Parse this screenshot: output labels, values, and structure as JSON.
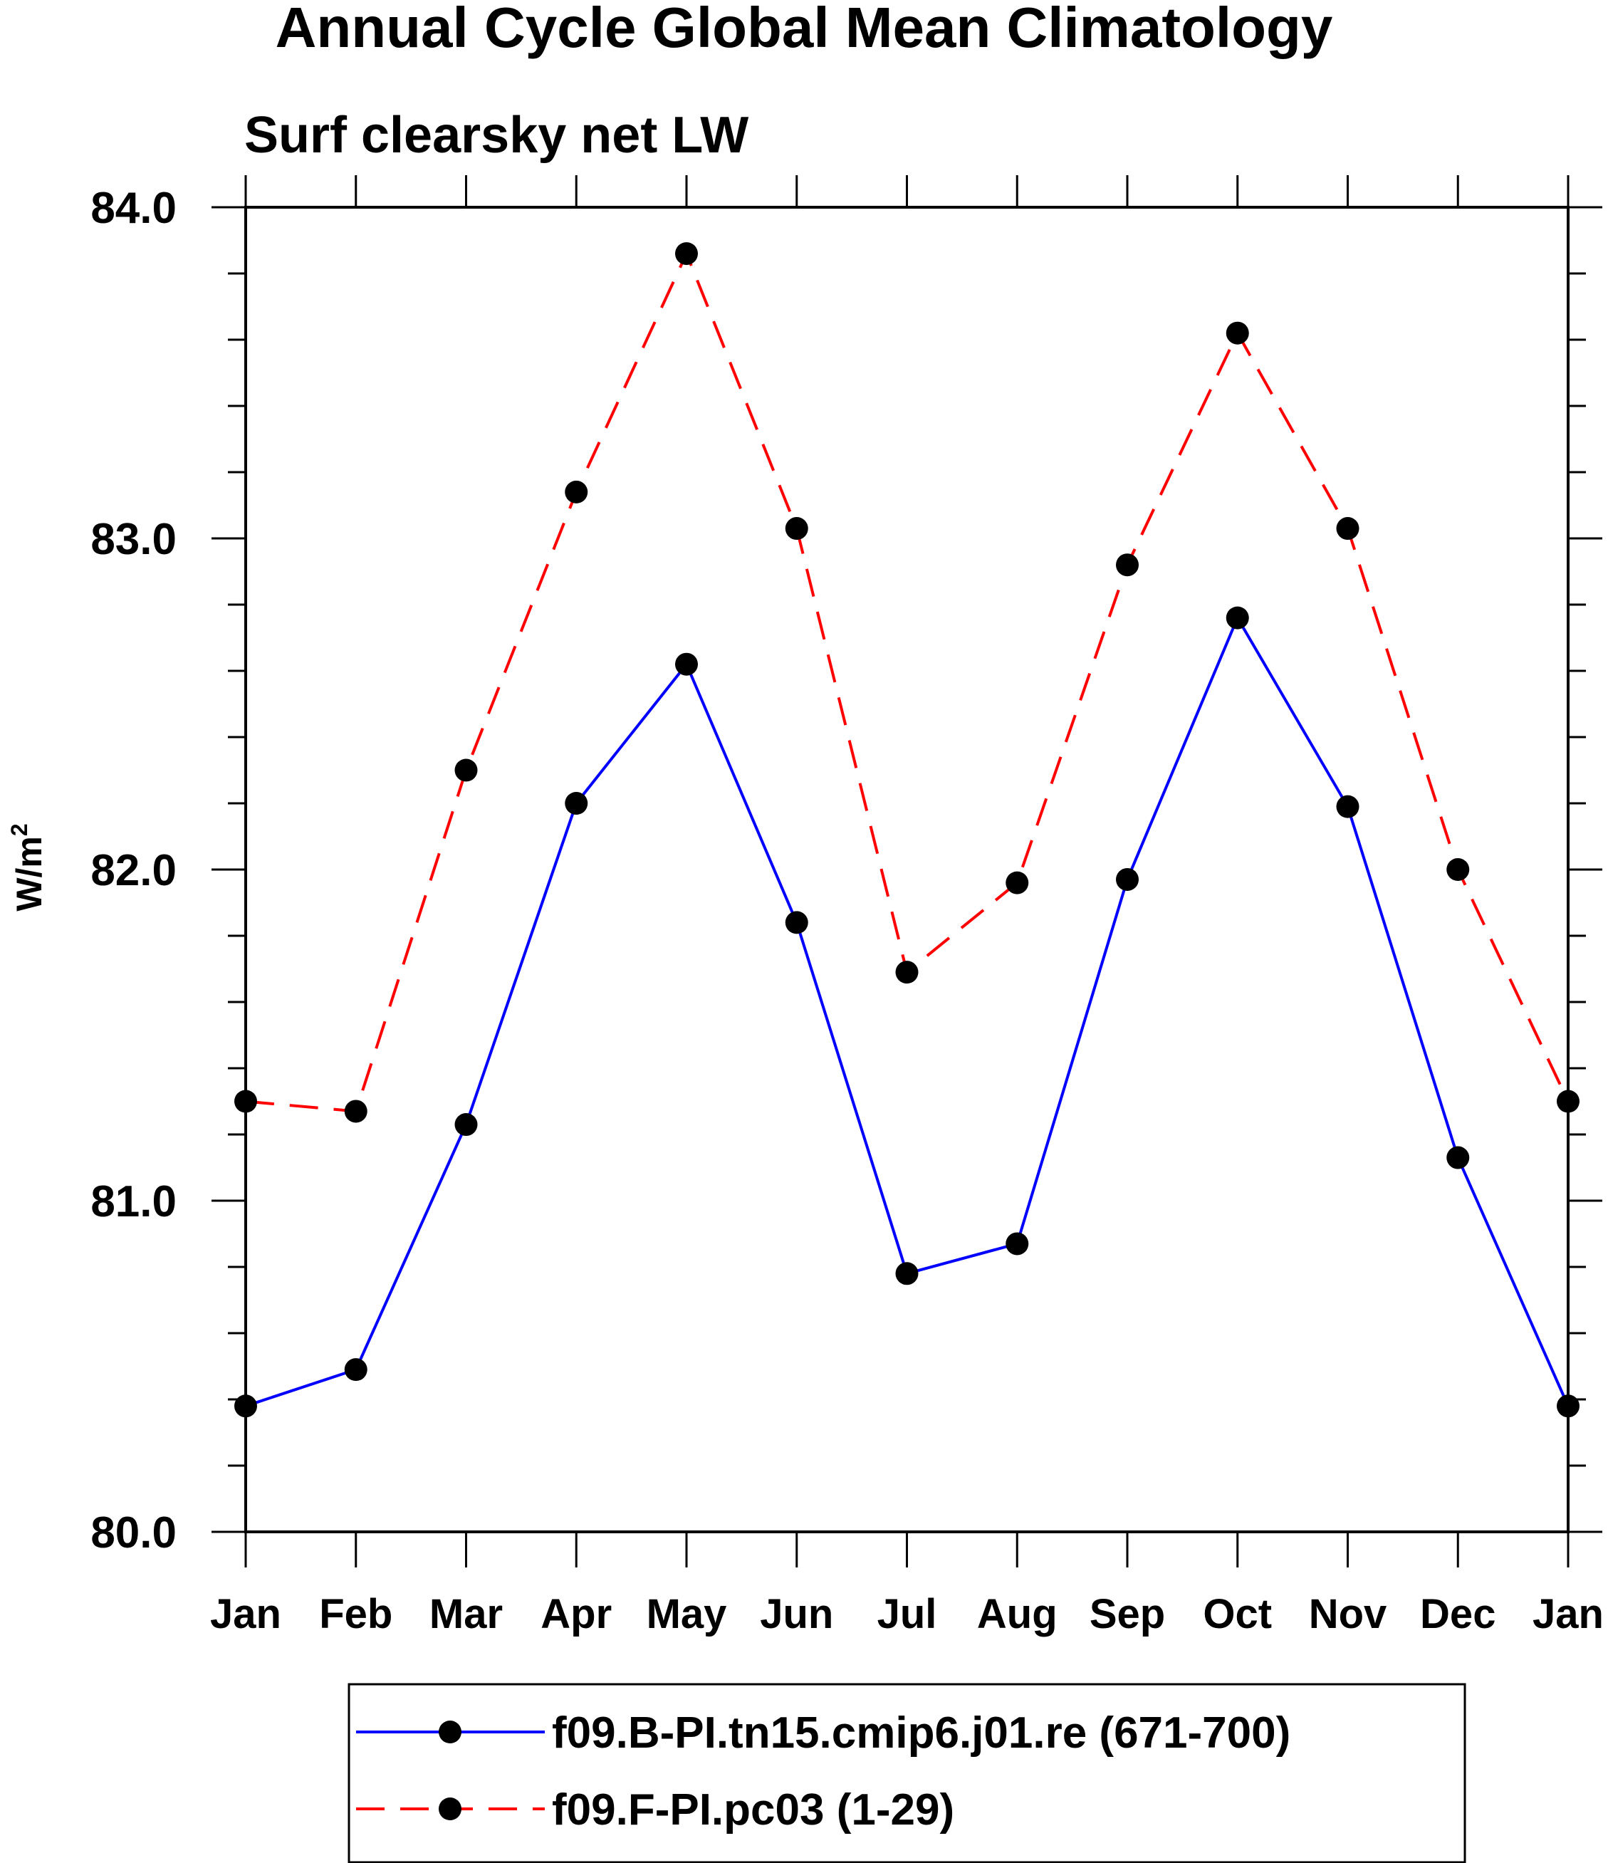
{
  "chart_data": {
    "type": "line",
    "title": "Annual Cycle Global Mean Climatology",
    "subtitle": "Surf clearsky net LW",
    "ylabel": "W/m",
    "ylabel_sup": "2",
    "xlabel": "",
    "categories": [
      "Jan",
      "Feb",
      "Mar",
      "Apr",
      "May",
      "Jun",
      "Jul",
      "Aug",
      "Sep",
      "Oct",
      "Nov",
      "Dec",
      "Jan"
    ],
    "ylim": [
      80.0,
      84.0
    ],
    "yticks": [
      80.0,
      81.0,
      82.0,
      83.0,
      84.0
    ],
    "ytick_labels": [
      "80.0",
      "81.0",
      "82.0",
      "83.0",
      "84.0"
    ],
    "y_minor_step": 0.2,
    "grid": false,
    "legend_position": "bottom-center",
    "series": [
      {
        "name": "f09.B-PI.tn15.cmip6.j01.re (671-700)",
        "color": "#0000ff",
        "dash": "solid",
        "marker": "circle",
        "values": [
          80.38,
          80.49,
          81.23,
          82.2,
          82.62,
          81.84,
          80.78,
          80.87,
          81.97,
          82.76,
          82.19,
          81.13,
          80.38
        ]
      },
      {
        "name": "f09.F-PI.pc03 (1-29)",
        "color": "#ff0000",
        "dash": "dashed",
        "marker": "circle",
        "values": [
          81.3,
          81.27,
          82.3,
          83.14,
          83.86,
          83.03,
          81.69,
          81.96,
          82.92,
          83.62,
          83.03,
          82.0,
          81.3
        ]
      }
    ]
  }
}
